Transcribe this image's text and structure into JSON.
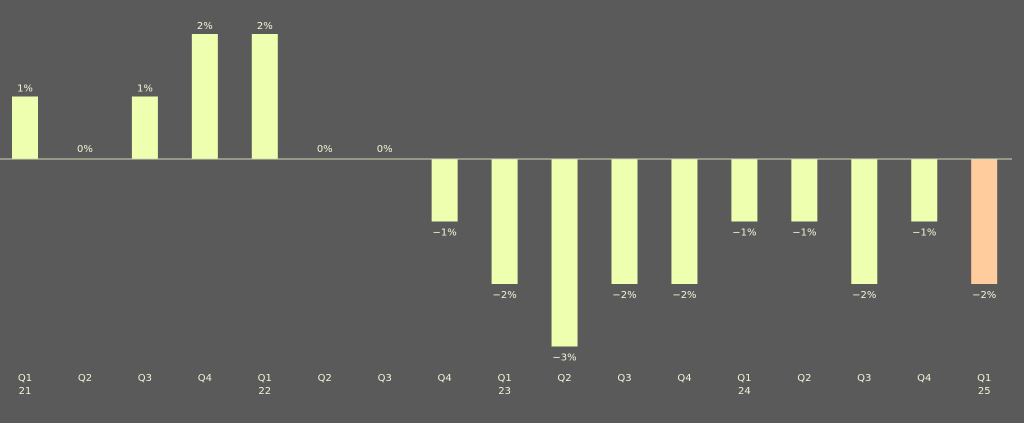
{
  "chart_data": {
    "type": "bar",
    "categories": [
      {
        "q": "Q1",
        "y": "21"
      },
      {
        "q": "Q2",
        "y": ""
      },
      {
        "q": "Q3",
        "y": ""
      },
      {
        "q": "Q4",
        "y": ""
      },
      {
        "q": "Q1",
        "y": "22"
      },
      {
        "q": "Q2",
        "y": ""
      },
      {
        "q": "Q3",
        "y": ""
      },
      {
        "q": "Q4",
        "y": ""
      },
      {
        "q": "Q1",
        "y": "23"
      },
      {
        "q": "Q2",
        "y": ""
      },
      {
        "q": "Q3",
        "y": ""
      },
      {
        "q": "Q4",
        "y": ""
      },
      {
        "q": "Q1",
        "y": "24"
      },
      {
        "q": "Q2",
        "y": ""
      },
      {
        "q": "Q3",
        "y": ""
      },
      {
        "q": "Q4",
        "y": ""
      },
      {
        "q": "Q1",
        "y": "25"
      }
    ],
    "values": [
      1,
      0,
      1,
      2,
      2,
      0,
      0,
      -1,
      -2,
      -3,
      -2,
      -2,
      -1,
      -1,
      -2,
      -1,
      -2
    ],
    "labels": [
      "1%",
      "0%",
      "1%",
      "2%",
      "2%",
      "0%",
      "0%",
      "−1%",
      "−2%",
      "−3%",
      "−2%",
      "−2%",
      "−1%",
      "−1%",
      "−2%",
      "−1%",
      "−2%"
    ],
    "ylim": [
      -3,
      2
    ],
    "grid": false,
    "colors": {
      "background": "#5a5a5a",
      "bar": "#eeffb0",
      "highlight_bar": "#ffcc9e",
      "zero_line": "#d4d8b6",
      "text": "#f0f3d6"
    },
    "highlight_index": 16
  }
}
